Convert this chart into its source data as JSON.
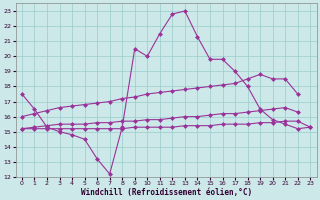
{
  "xlabel": "Windchill (Refroidissement éolien,°C)",
  "bg_color": "#cce8e8",
  "line_color": "#993399",
  "grid_color": "#99cccc",
  "xlim": [
    -0.5,
    23.5
  ],
  "ylim": [
    12,
    23.5
  ],
  "xticks": [
    0,
    1,
    2,
    3,
    4,
    5,
    6,
    7,
    8,
    9,
    10,
    11,
    12,
    13,
    14,
    15,
    16,
    17,
    18,
    19,
    20,
    21,
    22,
    23
  ],
  "yticks": [
    12,
    13,
    14,
    15,
    16,
    17,
    18,
    19,
    20,
    21,
    22,
    23
  ],
  "line1_x": [
    0,
    1,
    2,
    3,
    4,
    5,
    6,
    7,
    8,
    9,
    10,
    11,
    12,
    13,
    14,
    15,
    16,
    17,
    18,
    19,
    20,
    21,
    22,
    23
  ],
  "line1_y": [
    17.5,
    16.5,
    15.3,
    15.0,
    14.8,
    14.5,
    13.2,
    12.2,
    15.3,
    20.5,
    20.0,
    21.5,
    22.8,
    23.0,
    21.3,
    19.8,
    19.8,
    19.0,
    18.0,
    16.5,
    15.8,
    15.5,
    15.2,
    15.3
  ],
  "line2_x": [
    0,
    1,
    2,
    3,
    4,
    5,
    6,
    7,
    8,
    9,
    10,
    11,
    12,
    13,
    14,
    15,
    16,
    17,
    18,
    19,
    20,
    21,
    22,
    23
  ],
  "line2_y": [
    16.0,
    16.2,
    16.4,
    16.6,
    16.7,
    16.8,
    16.9,
    17.0,
    17.2,
    17.3,
    17.5,
    17.6,
    17.7,
    17.8,
    17.9,
    18.0,
    18.1,
    18.2,
    18.5,
    18.8,
    18.5,
    18.5,
    17.5,
    null
  ],
  "line3_x": [
    0,
    1,
    2,
    3,
    4,
    5,
    6,
    7,
    8,
    9,
    10,
    11,
    12,
    13,
    14,
    15,
    16,
    17,
    18,
    19,
    20,
    21,
    22,
    23
  ],
  "line3_y": [
    15.2,
    15.3,
    15.4,
    15.5,
    15.5,
    15.5,
    15.6,
    15.6,
    15.7,
    15.7,
    15.8,
    15.8,
    15.9,
    16.0,
    16.0,
    16.1,
    16.2,
    16.2,
    16.3,
    16.4,
    16.5,
    16.6,
    16.3,
    null
  ],
  "line4_x": [
    0,
    1,
    2,
    3,
    4,
    5,
    6,
    7,
    8,
    9,
    10,
    11,
    12,
    13,
    14,
    15,
    16,
    17,
    18,
    19,
    20,
    21,
    22,
    23
  ],
  "line4_y": [
    15.2,
    15.2,
    15.2,
    15.2,
    15.2,
    15.2,
    15.2,
    15.2,
    15.2,
    15.3,
    15.3,
    15.3,
    15.3,
    15.4,
    15.4,
    15.4,
    15.5,
    15.5,
    15.5,
    15.6,
    15.6,
    15.7,
    15.7,
    15.3
  ]
}
